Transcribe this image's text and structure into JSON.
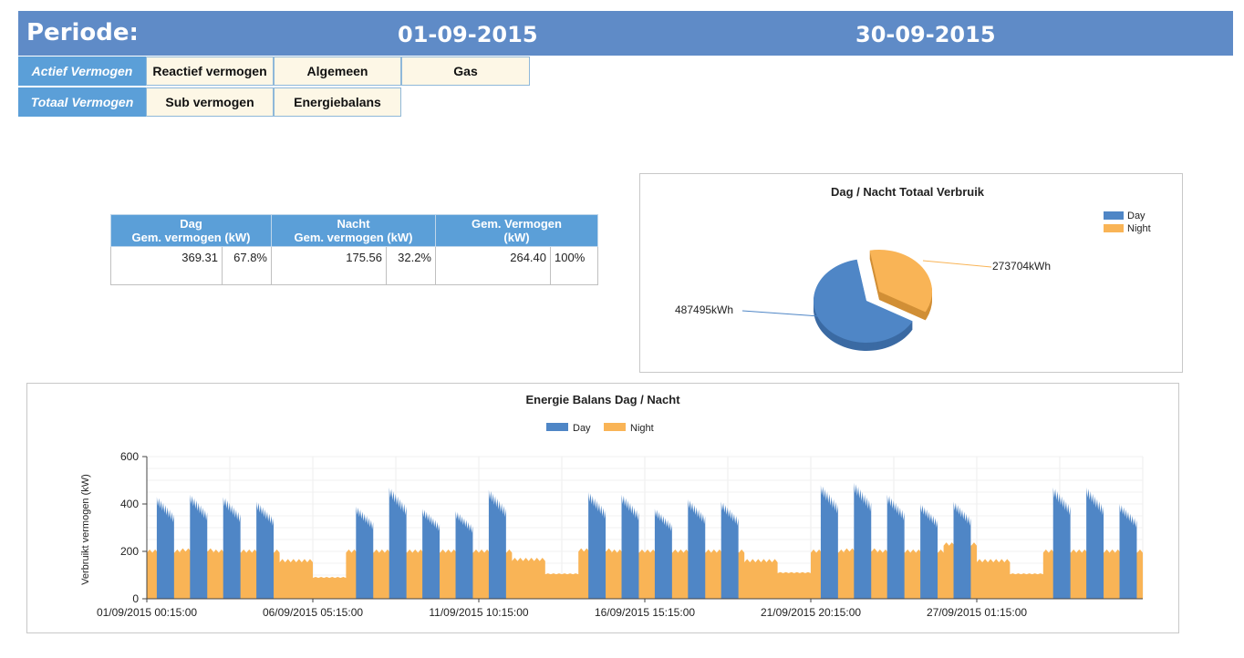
{
  "header": {
    "title": "Periode:",
    "start_date": "01-09-2015",
    "end_date": "30-09-2015"
  },
  "tabs_row1": [
    "Actief Vermogen",
    "Reactief vermogen",
    "Algemeen",
    "Gas"
  ],
  "tabs_row2": [
    "Totaal Vermogen",
    "Sub vermogen",
    "Energiebalans"
  ],
  "stats_table": {
    "headers": [
      {
        "line1": "Dag",
        "line2": "Gem. vermogen (kW)"
      },
      {
        "line1": "Nacht",
        "line2": "Gem. vermogen (kW)"
      },
      {
        "line1": "Gem. Vermogen",
        "line2": "(kW)"
      }
    ],
    "row": [
      {
        "value": "369.31",
        "pct": "67.8%"
      },
      {
        "value": "175.56",
        "pct": "32.2%"
      },
      {
        "value": "264.40",
        "pct": "100%"
      }
    ]
  },
  "colors": {
    "day": "#4f86c6",
    "night": "#f9b456",
    "header_blue": "#5f8bc7",
    "tab_blue": "#5b9fd8"
  },
  "chart_data": [
    {
      "type": "pie",
      "title": "Dag / Nacht Totaal Verbruik",
      "legend": [
        "Day",
        "Night"
      ],
      "legend_position": "top-right",
      "slices": [
        {
          "name": "Day",
          "value": 487495,
          "label": "487495kWh"
        },
        {
          "name": "Night",
          "value": 273704,
          "label": "273704kWh"
        }
      ]
    },
    {
      "type": "area",
      "title": "Energie Balans Dag / Nacht",
      "legend": [
        "Day",
        "Night"
      ],
      "legend_position": "top",
      "ylabel": "Verbruikt vermogen (kW)",
      "xlabel": "",
      "ylim": [
        0,
        600
      ],
      "yticks": [
        "0",
        "200",
        "400",
        "600"
      ],
      "xticks": [
        "01/09/2015 00:15:00",
        "06/09/2015 05:15:00",
        "11/09/2015 10:15:00",
        "16/09/2015 15:15:00",
        "21/09/2015 20:15:00",
        "27/09/2015 01:15:00"
      ],
      "grid": true,
      "series": [
        {
          "name": "Day",
          "description": "weekday daytime blocks",
          "daily_peak_kw": [
            430,
            440,
            430,
            410,
            0,
            0,
            390,
            470,
            380,
            370,
            460,
            0,
            0,
            450,
            440,
            380,
            420,
            410,
            0,
            0,
            480,
            490,
            440,
            400,
            410,
            0,
            0,
            470,
            470,
            400
          ]
        },
        {
          "name": "Night",
          "description": "night and weekend base load",
          "daily_level_kw": [
            200,
            205,
            200,
            200,
            160,
            90,
            200,
            200,
            200,
            200,
            200,
            165,
            105,
            205,
            200,
            200,
            200,
            200,
            160,
            110,
            200,
            205,
            200,
            200,
            230,
            160,
            105,
            200,
            200,
            200
          ]
        }
      ]
    }
  ]
}
